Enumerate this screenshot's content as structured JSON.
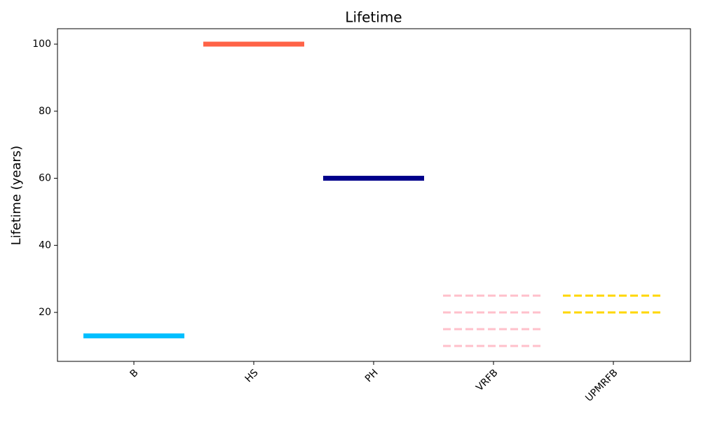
{
  "chart_data": {
    "type": "hline",
    "title": "Lifetime",
    "y_label": "Lifetime (years)",
    "categories": [
      "B",
      "HS",
      "PH",
      "VRFB",
      "UPMRFB"
    ],
    "values": [
      [
        13
      ],
      [
        100
      ],
      [
        60
      ],
      [
        10,
        15,
        20,
        25
      ],
      [
        20,
        25
      ]
    ],
    "colors": [
      "#00bfff",
      "#ff6347",
      "#00008b",
      "#ffc0cb",
      "#ffd700"
    ],
    "linestyles": [
      "solid",
      "solid",
      "solid",
      "dashed",
      "dashed"
    ],
    "ylim": [
      5.4,
      104.6
    ],
    "yticks": [
      20,
      40,
      60,
      80,
      100
    ],
    "grid": false
  }
}
